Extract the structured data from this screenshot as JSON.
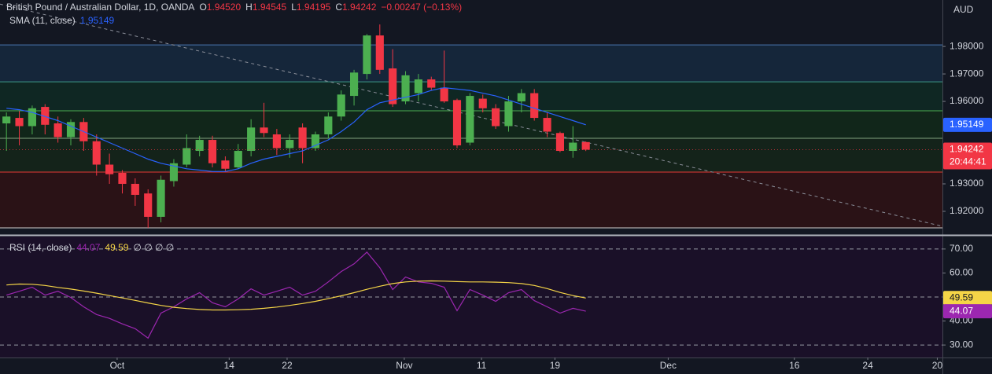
{
  "chart_data": [
    {
      "type": "candlestick",
      "title": "British Pound / Australian Dollar, 1D, OANDA",
      "legend": {
        "ohlc": [
          {
            "label": "O",
            "value": "1.94520"
          },
          {
            "label": "H",
            "value": "1.94545"
          },
          {
            "label": "L",
            "value": "1.94195"
          },
          {
            "label": "C",
            "value": "1.94242"
          }
        ],
        "change": "−0.00247 (−0.13%)"
      },
      "currency": "AUD",
      "countdown": "20:44:41",
      "up_color": "#4caf50",
      "down_color": "#f23645",
      "x": [
        0,
        1,
        2,
        3,
        4,
        5,
        6,
        7,
        8,
        9,
        10,
        11,
        12,
        13,
        14,
        15,
        16,
        17,
        18,
        19,
        20,
        21,
        22,
        23,
        24,
        25,
        26,
        27,
        28,
        29,
        30,
        31,
        32,
        33,
        34,
        35,
        36,
        37,
        38,
        39,
        40,
        41,
        42,
        43,
        44,
        45
      ],
      "open": [
        1.952,
        1.954,
        1.951,
        1.958,
        1.952,
        1.947,
        1.9525,
        1.9455,
        1.937,
        1.934,
        1.93,
        1.9265,
        1.918,
        1.931,
        1.937,
        1.942,
        1.946,
        1.9385,
        1.936,
        1.942,
        1.9505,
        1.948,
        1.943,
        1.9505,
        1.943,
        1.948,
        1.9545,
        1.962,
        1.97,
        1.984,
        1.972,
        1.96,
        1.963,
        1.968,
        1.965,
        1.9605,
        1.945,
        1.961,
        1.9575,
        1.951,
        1.96,
        1.963,
        1.954,
        1.9485,
        1.942,
        1.9452
      ],
      "high": [
        1.956,
        1.9565,
        1.9585,
        1.959,
        1.9545,
        1.9535,
        1.954,
        1.948,
        1.941,
        1.935,
        1.932,
        1.928,
        1.933,
        1.939,
        1.948,
        1.9475,
        1.9475,
        1.94,
        1.9445,
        1.9535,
        1.9595,
        1.95,
        1.948,
        1.952,
        1.949,
        1.956,
        1.964,
        1.9715,
        1.9845,
        1.988,
        1.979,
        1.971,
        1.97,
        1.969,
        1.9785,
        1.961,
        1.963,
        1.9625,
        1.959,
        1.962,
        1.9645,
        1.9645,
        1.956,
        1.949,
        1.951,
        1.94545
      ],
      "low": [
        1.942,
        1.944,
        1.948,
        1.948,
        1.945,
        1.944,
        1.942,
        1.933,
        1.93,
        1.9265,
        1.922,
        1.914,
        1.916,
        1.929,
        1.936,
        1.94,
        1.936,
        1.9345,
        1.9355,
        1.94,
        1.947,
        1.9405,
        1.9395,
        1.9375,
        1.942,
        1.9465,
        1.953,
        1.9585,
        1.968,
        1.97,
        1.958,
        1.959,
        1.96,
        1.964,
        1.9595,
        1.943,
        1.944,
        1.956,
        1.95,
        1.949,
        1.956,
        1.953,
        1.947,
        1.9415,
        1.9395,
        1.94195
      ],
      "close": [
        1.9545,
        1.951,
        1.9575,
        1.9515,
        1.947,
        1.9525,
        1.9455,
        1.937,
        1.9335,
        1.93,
        1.926,
        1.918,
        1.9315,
        1.9375,
        1.943,
        1.946,
        1.9375,
        1.9355,
        1.942,
        1.9505,
        1.9485,
        1.943,
        1.946,
        1.943,
        1.948,
        1.9545,
        1.9625,
        1.9705,
        1.984,
        1.9715,
        1.959,
        1.9695,
        1.968,
        1.965,
        1.96,
        1.944,
        1.962,
        1.9575,
        1.951,
        1.96,
        1.963,
        1.954,
        1.949,
        1.942,
        1.945,
        1.94242
      ],
      "series": [
        {
          "name": "SMA (11, close)",
          "color": "#2962ff",
          "values": [
            1.9575,
            1.957,
            1.956,
            1.9545,
            1.953,
            1.951,
            1.949,
            1.947,
            1.945,
            1.943,
            1.941,
            1.939,
            1.9375,
            1.9365,
            1.9355,
            1.935,
            1.9345,
            1.9345,
            1.9355,
            1.9375,
            1.939,
            1.94,
            1.941,
            1.942,
            1.944,
            1.946,
            1.949,
            1.9525,
            1.957,
            1.9595,
            1.9605,
            1.9615,
            1.9625,
            1.964,
            1.965,
            1.9645,
            1.964,
            1.963,
            1.962,
            1.9605,
            1.959,
            1.9575,
            1.956,
            1.9545,
            1.953,
            1.95149
          ]
        }
      ],
      "levels": [
        {
          "value": 1.98057,
          "color": "#4a78b5"
        },
        {
          "value": 1.96714,
          "color": "#3e9c8c"
        },
        {
          "value": 1.95657,
          "color": "#4caf50"
        },
        {
          "value": 1.94657,
          "color": "#7fa37f"
        },
        {
          "value": 1.93429,
          "color": "#e53935"
        },
        {
          "value": 1.914,
          "color": "#d0d0d0"
        }
      ],
      "zone_fills": [
        "#15263a",
        "#0f2723",
        "#11261a",
        "#14231a",
        "#2a1216"
      ],
      "trendline": {
        "x": [
          -0.5,
          72.7
        ],
        "y": [
          1.9954,
          1.91457
        ],
        "color": "#8a8e99"
      },
      "xlim": [
        -0.5,
        72.7
      ],
      "ylim": [
        1.9117,
        1.9969
      ],
      "yticks": [
        {
          "value": 1.98,
          "label": "1.98000"
        },
        {
          "value": 1.97,
          "label": "1.97000"
        },
        {
          "value": 1.96,
          "label": "1.96000"
        },
        {
          "value": 1.93,
          "label": "1.93000"
        },
        {
          "value": 1.92,
          "label": "1.92000"
        }
      ]
    },
    {
      "type": "line",
      "title": "RSI (14, close)",
      "na_values": "∅ ∅ ∅ ∅",
      "background": "#1a1028",
      "x": [
        0,
        1,
        2,
        3,
        4,
        5,
        6,
        7,
        8,
        9,
        10,
        11,
        12,
        13,
        14,
        15,
        16,
        17,
        18,
        19,
        20,
        21,
        22,
        23,
        24,
        25,
        26,
        27,
        28,
        29,
        30,
        31,
        32,
        33,
        34,
        35,
        36,
        37,
        38,
        39,
        40,
        41,
        42,
        43,
        44,
        45
      ],
      "series": [
        {
          "color": "#9c27b0",
          "values": [
            50.8,
            52.4,
            54.1,
            50.8,
            52.4,
            49.8,
            45.9,
            42.7,
            41.1,
            38.8,
            36.8,
            32.9,
            43.3,
            45.9,
            49.2,
            51.8,
            47.6,
            45.9,
            49.2,
            53.4,
            50.8,
            52.4,
            54.1,
            50.8,
            52.4,
            56.3,
            60.6,
            63.8,
            68.7,
            62.2,
            53.1,
            58.3,
            56.3,
            55.7,
            54.1,
            44.3,
            53.1,
            50.8,
            48.2,
            51.8,
            53.1,
            48.5,
            45.9,
            43.3,
            45.3,
            44.07
          ]
        },
        {
          "color": "#f5d547",
          "values": [
            55.0,
            55.4,
            55.3,
            54.8,
            54.0,
            53.3,
            52.5,
            51.6,
            50.6,
            49.6,
            48.6,
            47.5,
            46.5,
            45.7,
            45.2,
            44.8,
            44.6,
            44.6,
            44.7,
            44.9,
            45.3,
            45.8,
            46.5,
            47.3,
            48.2,
            49.3,
            50.5,
            51.8,
            53.2,
            54.5,
            55.6,
            56.3,
            56.6,
            56.7,
            56.6,
            56.4,
            56.3,
            56.3,
            56.2,
            56.0,
            55.6,
            54.8,
            53.5,
            51.9,
            50.6,
            49.59
          ]
        }
      ],
      "levels": [
        70,
        50,
        30
      ],
      "xlim": [
        -0.5,
        72.7
      ],
      "ylim": [
        24.8,
        75.2
      ],
      "yticks": [
        {
          "value": 70,
          "label": "70.00"
        },
        {
          "value": 60,
          "label": "60.00"
        },
        {
          "value": 40,
          "label": "40.00"
        },
        {
          "value": 30,
          "label": "30.00"
        }
      ],
      "xticks": [
        {
          "value": 8.6,
          "label": "Oct"
        },
        {
          "value": 17.3,
          "label": "14"
        },
        {
          "value": 21.8,
          "label": "22"
        },
        {
          "value": 30.9,
          "label": "Nov"
        },
        {
          "value": 36.9,
          "label": "11"
        },
        {
          "value": 42.6,
          "label": "19"
        },
        {
          "value": 51.4,
          "label": "Dec"
        },
        {
          "value": 61.2,
          "label": "16"
        },
        {
          "value": 66.9,
          "label": "24"
        },
        {
          "value": 72.3,
          "label": "20"
        }
      ]
    }
  ]
}
